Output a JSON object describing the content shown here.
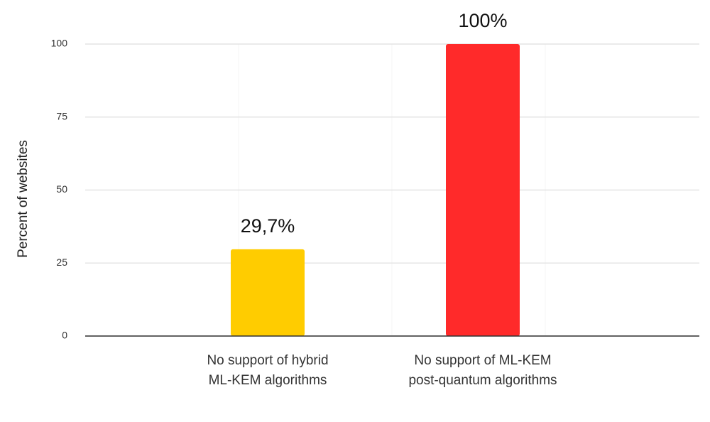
{
  "chart_data": {
    "type": "bar",
    "y_label": "Percent of websites",
    "categories": [
      [
        "No support of hybrid",
        "ML-KEM algorithms"
      ],
      [
        "No support of ML-KEM",
        "post-quantum algorithms"
      ]
    ],
    "values": [
      29.7,
      100
    ],
    "value_labels": [
      "29,7%",
      "100%"
    ],
    "colors": [
      "#ffcc00",
      "#ff2a2a"
    ],
    "ylim": [
      0,
      100
    ],
    "yticks": [
      0,
      25,
      50,
      75,
      100
    ],
    "grid": true
  }
}
